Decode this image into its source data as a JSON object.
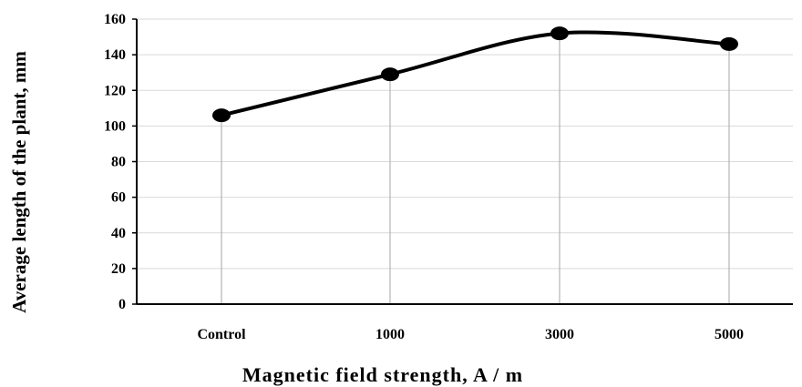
{
  "chart_data": {
    "type": "line",
    "title": "",
    "xlabel": "Magnetic field strength, A / m",
    "ylabel": "Average length of the plant, mm",
    "categories": [
      "Control",
      "1000",
      "3000",
      "5000"
    ],
    "series": [
      {
        "values": [
          106,
          129,
          152,
          146
        ]
      }
    ],
    "ylim": [
      0,
      160
    ],
    "yticks": [
      0,
      20,
      40,
      60,
      80,
      100,
      120,
      140,
      160
    ],
    "grid": {
      "horizontal": true,
      "vertical_drop_lines": true
    },
    "smooth": true,
    "legend": "none",
    "colors": {
      "line": "#000000",
      "grid": "#d9d9d9",
      "drop_line": "#a6a6a6",
      "axis": "#000000"
    }
  }
}
